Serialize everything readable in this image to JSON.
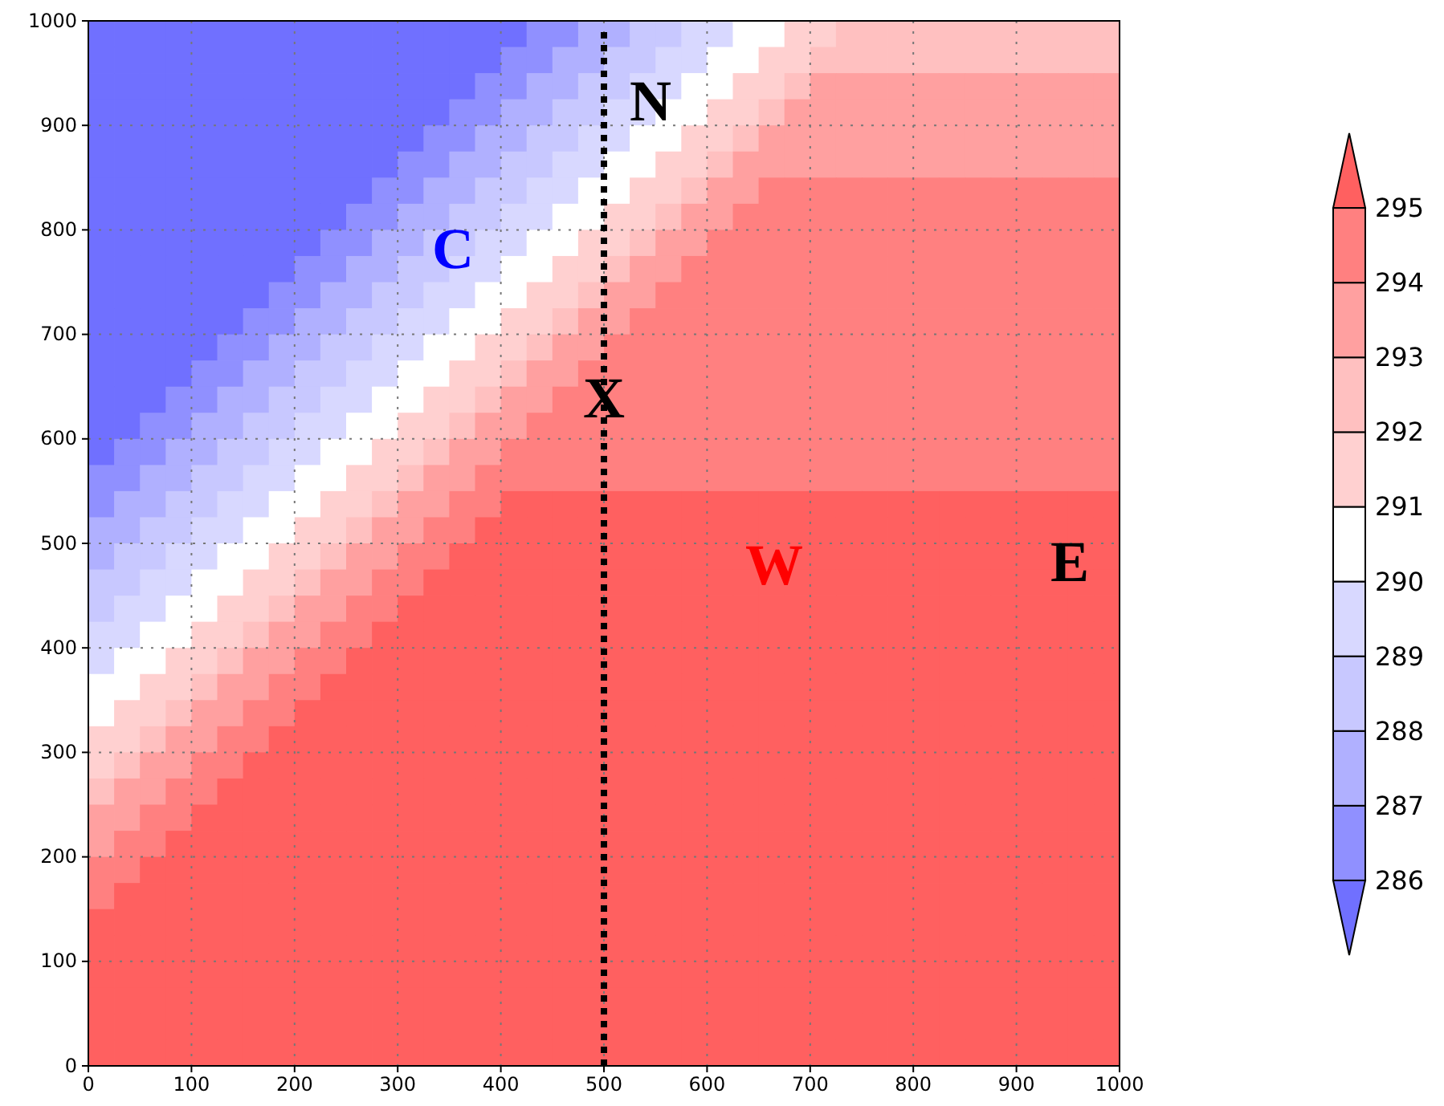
{
  "chart_data": {
    "type": "heatmap",
    "xlim": [
      0,
      1000
    ],
    "ylim": [
      0,
      1000
    ],
    "xticks": [
      0,
      100,
      200,
      300,
      400,
      500,
      600,
      700,
      800,
      900,
      1000
    ],
    "yticks": [
      0,
      100,
      200,
      300,
      400,
      500,
      600,
      700,
      800,
      900,
      1000
    ],
    "grid": true,
    "clim": [
      285,
      296
    ],
    "cticks": [
      286,
      287,
      288,
      289,
      290,
      291,
      292,
      293,
      294,
      295
    ],
    "colors": [
      "#7070ff",
      "#9090ff",
      "#b0b0ff",
      "#c8c8ff",
      "#d8d8ff",
      "#ffffff",
      "#ffd0d0",
      "#ffc0c0",
      "#ffa0a0",
      "#ff8080",
      "#ff6060"
    ],
    "ref_lines": [
      {
        "axis": "x",
        "value": 500,
        "color": "#000000",
        "line_style": "dotted"
      }
    ],
    "annotations": [
      "N",
      "C",
      {
        "text": "X",
        "x": 500,
        "y": 639
      },
      "W",
      "E"
    ],
    "cells": [
      [
        285.5,
        285.5,
        285.5,
        285.5,
        285.5,
        285.5,
        285.5,
        285.5,
        285.5,
        285.5,
        285.5,
        285.5,
        285.5,
        285.5,
        285.5,
        285.5,
        285.5,
        286.5,
        286.5,
        287.5,
        287.5,
        288.5,
        288.5,
        289.5,
        289.5,
        290.5,
        290.5,
        291.5,
        291.5,
        292.5,
        292.5,
        292.5,
        292.5,
        292.5,
        292.5,
        292.5,
        292.5,
        292.5,
        292.5,
        292.5
      ],
      [
        285.5,
        285.5,
        285.5,
        285.5,
        285.5,
        285.5,
        285.5,
        285.5,
        285.5,
        285.5,
        285.5,
        285.5,
        285.5,
        285.5,
        285.5,
        285.5,
        286.5,
        286.5,
        287.5,
        287.5,
        288.5,
        288.5,
        289.5,
        289.5,
        290.5,
        290.5,
        291.5,
        291.5,
        292.5,
        292.5,
        292.5,
        292.5,
        292.5,
        292.5,
        292.5,
        292.5,
        292.5,
        292.5,
        292.5,
        292.5
      ],
      [
        285.5,
        285.5,
        285.5,
        285.5,
        285.5,
        285.5,
        285.5,
        285.5,
        285.5,
        285.5,
        285.5,
        285.5,
        285.5,
        285.5,
        285.5,
        286.5,
        286.5,
        287.5,
        287.5,
        288.5,
        288.5,
        289.5,
        289.5,
        290.5,
        290.5,
        291.5,
        291.5,
        292.5,
        293.5,
        293.5,
        293.5,
        293.5,
        293.5,
        293.5,
        293.5,
        293.5,
        293.5,
        293.5,
        293.5,
        293.5
      ],
      [
        285.5,
        285.5,
        285.5,
        285.5,
        285.5,
        285.5,
        285.5,
        285.5,
        285.5,
        285.5,
        285.5,
        285.5,
        285.5,
        285.5,
        286.5,
        286.5,
        287.5,
        287.5,
        288.5,
        288.5,
        289.5,
        289.5,
        290.5,
        290.5,
        291.5,
        291.5,
        292.5,
        293.5,
        293.5,
        293.5,
        293.5,
        293.5,
        293.5,
        293.5,
        293.5,
        293.5,
        293.5,
        293.5,
        293.5,
        293.5
      ],
      [
        285.5,
        285.5,
        285.5,
        285.5,
        285.5,
        285.5,
        285.5,
        285.5,
        285.5,
        285.5,
        285.5,
        285.5,
        285.5,
        286.5,
        286.5,
        287.5,
        287.5,
        288.5,
        288.5,
        289.5,
        289.5,
        290.5,
        290.5,
        291.5,
        291.5,
        292.5,
        293.5,
        293.5,
        293.5,
        293.5,
        293.5,
        293.5,
        293.5,
        293.5,
        293.5,
        293.5,
        293.5,
        293.5,
        293.5,
        293.5
      ],
      [
        285.5,
        285.5,
        285.5,
        285.5,
        285.5,
        285.5,
        285.5,
        285.5,
        285.5,
        285.5,
        285.5,
        285.5,
        286.5,
        286.5,
        287.5,
        287.5,
        288.5,
        288.5,
        289.5,
        289.5,
        290.5,
        290.5,
        291.5,
        291.5,
        292.5,
        293.5,
        293.5,
        293.5,
        293.5,
        293.5,
        293.5,
        293.5,
        293.5,
        293.5,
        293.5,
        293.5,
        293.5,
        293.5,
        293.5,
        293.5
      ],
      [
        285.5,
        285.5,
        285.5,
        285.5,
        285.5,
        285.5,
        285.5,
        285.5,
        285.5,
        285.5,
        285.5,
        286.5,
        286.5,
        287.5,
        287.5,
        288.5,
        288.5,
        289.5,
        289.5,
        290.5,
        290.5,
        291.5,
        291.5,
        292.5,
        293.5,
        293.5,
        294.5,
        294.5,
        294.5,
        294.5,
        294.5,
        294.5,
        294.5,
        294.5,
        294.5,
        294.5,
        294.5,
        294.5,
        294.5,
        294.5
      ],
      [
        285.5,
        285.5,
        285.5,
        285.5,
        285.5,
        285.5,
        285.5,
        285.5,
        285.5,
        285.5,
        286.5,
        286.5,
        287.5,
        287.5,
        288.5,
        288.5,
        289.5,
        289.5,
        290.5,
        290.5,
        291.5,
        291.5,
        292.5,
        293.5,
        293.5,
        294.5,
        294.5,
        294.5,
        294.5,
        294.5,
        294.5,
        294.5,
        294.5,
        294.5,
        294.5,
        294.5,
        294.5,
        294.5,
        294.5,
        294.5
      ],
      [
        285.5,
        285.5,
        285.5,
        285.5,
        285.5,
        285.5,
        285.5,
        285.5,
        285.5,
        286.5,
        286.5,
        287.5,
        287.5,
        288.5,
        288.5,
        289.5,
        289.5,
        290.5,
        290.5,
        291.5,
        291.5,
        292.5,
        293.5,
        293.5,
        294.5,
        294.5,
        294.5,
        294.5,
        294.5,
        294.5,
        294.5,
        294.5,
        294.5,
        294.5,
        294.5,
        294.5,
        294.5,
        294.5,
        294.5,
        294.5
      ],
      [
        285.5,
        285.5,
        285.5,
        285.5,
        285.5,
        285.5,
        285.5,
        285.5,
        286.5,
        286.5,
        287.5,
        287.5,
        288.5,
        288.5,
        289.5,
        289.5,
        290.5,
        290.5,
        291.5,
        291.5,
        292.5,
        293.5,
        293.5,
        294.5,
        294.5,
        294.5,
        294.5,
        294.5,
        294.5,
        294.5,
        294.5,
        294.5,
        294.5,
        294.5,
        294.5,
        294.5,
        294.5,
        294.5,
        294.5,
        294.5
      ],
      [
        285.5,
        285.5,
        285.5,
        285.5,
        285.5,
        285.5,
        285.5,
        286.5,
        286.5,
        287.5,
        287.5,
        288.5,
        288.5,
        289.5,
        289.5,
        290.5,
        290.5,
        291.5,
        291.5,
        292.5,
        293.5,
        293.5,
        294.5,
        294.5,
        294.5,
        294.5,
        294.5,
        294.5,
        294.5,
        294.5,
        294.5,
        294.5,
        294.5,
        294.5,
        294.5,
        294.5,
        294.5,
        294.5,
        294.5,
        294.5
      ],
      [
        285.5,
        285.5,
        285.5,
        285.5,
        285.5,
        285.5,
        286.5,
        286.5,
        287.5,
        287.5,
        288.5,
        288.5,
        289.5,
        289.5,
        290.5,
        290.5,
        291.5,
        291.5,
        292.5,
        293.5,
        293.5,
        294.5,
        294.5,
        294.5,
        294.5,
        294.5,
        294.5,
        294.5,
        294.5,
        294.5,
        294.5,
        294.5,
        294.5,
        294.5,
        294.5,
        294.5,
        294.5,
        294.5,
        294.5,
        294.5
      ],
      [
        285.5,
        285.5,
        285.5,
        285.5,
        285.5,
        286.5,
        286.5,
        287.5,
        287.5,
        288.5,
        288.5,
        289.5,
        289.5,
        290.5,
        290.5,
        291.5,
        291.5,
        292.5,
        293.5,
        293.5,
        294.5,
        294.5,
        294.5,
        294.5,
        294.5,
        294.5,
        294.5,
        294.5,
        294.5,
        294.5,
        294.5,
        294.5,
        294.5,
        294.5,
        294.5,
        294.5,
        294.5,
        294.5,
        294.5,
        294.5
      ],
      [
        285.5,
        285.5,
        285.5,
        285.5,
        286.5,
        286.5,
        287.5,
        287.5,
        288.5,
        288.5,
        289.5,
        289.5,
        290.5,
        290.5,
        291.5,
        291.5,
        292.5,
        293.5,
        293.5,
        294.5,
        294.5,
        294.5,
        294.5,
        294.5,
        294.5,
        294.5,
        294.5,
        294.5,
        294.5,
        294.5,
        294.5,
        294.5,
        294.5,
        294.5,
        294.5,
        294.5,
        294.5,
        294.5,
        294.5,
        294.5
      ],
      [
        285.5,
        285.5,
        285.5,
        286.5,
        286.5,
        287.5,
        287.5,
        288.5,
        288.5,
        289.5,
        289.5,
        290.5,
        290.5,
        291.5,
        291.5,
        292.5,
        293.5,
        293.5,
        294.5,
        294.5,
        294.5,
        294.5,
        294.5,
        294.5,
        294.5,
        294.5,
        294.5,
        294.5,
        294.5,
        294.5,
        294.5,
        294.5,
        294.5,
        294.5,
        294.5,
        294.5,
        294.5,
        294.5,
        294.5,
        294.5
      ],
      [
        285.5,
        285.5,
        286.5,
        286.5,
        287.5,
        287.5,
        288.5,
        288.5,
        289.5,
        289.5,
        290.5,
        290.5,
        291.5,
        291.5,
        292.5,
        293.5,
        293.5,
        294.5,
        294.5,
        294.5,
        294.5,
        294.5,
        294.5,
        294.5,
        294.5,
        294.5,
        294.5,
        294.5,
        294.5,
        294.5,
        294.5,
        294.5,
        294.5,
        294.5,
        294.5,
        294.5,
        294.5,
        294.5,
        294.5,
        294.5
      ],
      [
        285.5,
        286.5,
        286.5,
        287.5,
        287.5,
        288.5,
        288.5,
        289.5,
        289.5,
        290.5,
        290.5,
        291.5,
        291.5,
        292.5,
        293.5,
        293.5,
        294.5,
        294.5,
        294.5,
        294.5,
        294.5,
        294.5,
        294.5,
        294.5,
        294.5,
        294.5,
        294.5,
        294.5,
        294.5,
        294.5,
        294.5,
        294.5,
        294.5,
        294.5,
        294.5,
        294.5,
        294.5,
        294.5,
        294.5,
        294.5
      ],
      [
        286.5,
        286.5,
        287.5,
        287.5,
        288.5,
        288.5,
        289.5,
        289.5,
        290.5,
        290.5,
        291.5,
        291.5,
        292.5,
        293.5,
        293.5,
        294.5,
        294.5,
        294.5,
        294.5,
        294.5,
        294.5,
        294.5,
        294.5,
        294.5,
        294.5,
        294.5,
        294.5,
        294.5,
        294.5,
        294.5,
        294.5,
        294.5,
        294.5,
        294.5,
        294.5,
        294.5,
        294.5,
        294.5,
        294.5,
        294.5
      ],
      [
        286.5,
        287.5,
        287.5,
        288.5,
        288.5,
        289.5,
        289.5,
        290.5,
        290.5,
        291.5,
        291.5,
        292.5,
        293.5,
        293.5,
        294.5,
        294.5,
        295.5,
        295.5,
        295.5,
        295.5,
        295.5,
        295.5,
        295.5,
        295.5,
        295.5,
        295.5,
        295.5,
        295.5,
        295.5,
        295.5,
        295.5,
        295.5,
        295.5,
        295.5,
        295.5,
        295.5,
        295.5,
        295.5,
        295.5,
        295.5
      ],
      [
        287.5,
        287.5,
        288.5,
        288.5,
        289.5,
        289.5,
        290.5,
        290.5,
        291.5,
        291.5,
        292.5,
        293.5,
        293.5,
        294.5,
        294.5,
        295.5,
        295.5,
        295.5,
        295.5,
        295.5,
        295.5,
        295.5,
        295.5,
        295.5,
        295.5,
        295.5,
        295.5,
        295.5,
        295.5,
        295.5,
        295.5,
        295.5,
        295.5,
        295.5,
        295.5,
        295.5,
        295.5,
        295.5,
        295.5,
        295.5
      ],
      [
        287.5,
        288.5,
        288.5,
        289.5,
        289.5,
        290.5,
        290.5,
        291.5,
        291.5,
        292.5,
        293.5,
        293.5,
        294.5,
        294.5,
        295.5,
        295.5,
        295.5,
        295.5,
        295.5,
        295.5,
        295.5,
        295.5,
        295.5,
        295.5,
        295.5,
        295.5,
        295.5,
        295.5,
        295.5,
        295.5,
        295.5,
        295.5,
        295.5,
        295.5,
        295.5,
        295.5,
        295.5,
        295.5,
        295.5,
        295.5
      ],
      [
        288.5,
        288.5,
        289.5,
        289.5,
        290.5,
        290.5,
        291.5,
        291.5,
        292.5,
        293.5,
        293.5,
        294.5,
        294.5,
        295.5,
        295.5,
        295.5,
        295.5,
        295.5,
        295.5,
        295.5,
        295.5,
        295.5,
        295.5,
        295.5,
        295.5,
        295.5,
        295.5,
        295.5,
        295.5,
        295.5,
        295.5,
        295.5,
        295.5,
        295.5,
        295.5,
        295.5,
        295.5,
        295.5,
        295.5,
        295.5
      ],
      [
        288.5,
        289.5,
        289.5,
        290.5,
        290.5,
        291.5,
        291.5,
        292.5,
        293.5,
        293.5,
        294.5,
        294.5,
        295.5,
        295.5,
        295.5,
        295.5,
        295.5,
        295.5,
        295.5,
        295.5,
        295.5,
        295.5,
        295.5,
        295.5,
        295.5,
        295.5,
        295.5,
        295.5,
        295.5,
        295.5,
        295.5,
        295.5,
        295.5,
        295.5,
        295.5,
        295.5,
        295.5,
        295.5,
        295.5,
        295.5
      ],
      [
        289.5,
        289.5,
        290.5,
        290.5,
        291.5,
        291.5,
        292.5,
        293.5,
        293.5,
        294.5,
        294.5,
        295.5,
        295.5,
        295.5,
        295.5,
        295.5,
        295.5,
        295.5,
        295.5,
        295.5,
        295.5,
        295.5,
        295.5,
        295.5,
        295.5,
        295.5,
        295.5,
        295.5,
        295.5,
        295.5,
        295.5,
        295.5,
        295.5,
        295.5,
        295.5,
        295.5,
        295.5,
        295.5,
        295.5,
        295.5
      ],
      [
        289.5,
        290.5,
        290.5,
        291.5,
        291.5,
        292.5,
        293.5,
        293.5,
        294.5,
        294.5,
        295.5,
        295.5,
        295.5,
        295.5,
        295.5,
        295.5,
        295.5,
        295.5,
        295.5,
        295.5,
        295.5,
        295.5,
        295.5,
        295.5,
        295.5,
        295.5,
        295.5,
        295.5,
        295.5,
        295.5,
        295.5,
        295.5,
        295.5,
        295.5,
        295.5,
        295.5,
        295.5,
        295.5,
        295.5,
        295.5
      ],
      [
        290.5,
        290.5,
        291.5,
        291.5,
        292.5,
        293.5,
        293.5,
        294.5,
        294.5,
        295.5,
        295.5,
        295.5,
        295.5,
        295.5,
        295.5,
        295.5,
        295.5,
        295.5,
        295.5,
        295.5,
        295.5,
        295.5,
        295.5,
        295.5,
        295.5,
        295.5,
        295.5,
        295.5,
        295.5,
        295.5,
        295.5,
        295.5,
        295.5,
        295.5,
        295.5,
        295.5,
        295.5,
        295.5,
        295.5,
        295.5
      ],
      [
        290.5,
        291.5,
        291.5,
        292.5,
        293.5,
        293.5,
        294.5,
        294.5,
        295.5,
        295.5,
        295.5,
        295.5,
        295.5,
        295.5,
        295.5,
        295.5,
        295.5,
        295.5,
        295.5,
        295.5,
        295.5,
        295.5,
        295.5,
        295.5,
        295.5,
        295.5,
        295.5,
        295.5,
        295.5,
        295.5,
        295.5,
        295.5,
        295.5,
        295.5,
        295.5,
        295.5,
        295.5,
        295.5,
        295.5,
        295.5
      ],
      [
        291.5,
        291.5,
        292.5,
        293.5,
        293.5,
        294.5,
        294.5,
        295.5,
        295.5,
        295.5,
        295.5,
        295.5,
        295.5,
        295.5,
        295.5,
        295.5,
        295.5,
        295.5,
        295.5,
        295.5,
        295.5,
        295.5,
        295.5,
        295.5,
        295.5,
        295.5,
        295.5,
        295.5,
        295.5,
        295.5,
        295.5,
        295.5,
        295.5,
        295.5,
        295.5,
        295.5,
        295.5,
        295.5,
        295.5,
        295.5
      ],
      [
        291.5,
        292.5,
        293.5,
        293.5,
        294.5,
        294.5,
        295.5,
        295.5,
        295.5,
        295.5,
        295.5,
        295.5,
        295.5,
        295.5,
        295.5,
        295.5,
        295.5,
        295.5,
        295.5,
        295.5,
        295.5,
        295.5,
        295.5,
        295.5,
        295.5,
        295.5,
        295.5,
        295.5,
        295.5,
        295.5,
        295.5,
        295.5,
        295.5,
        295.5,
        295.5,
        295.5,
        295.5,
        295.5,
        295.5,
        295.5
      ],
      [
        292.5,
        293.5,
        293.5,
        294.5,
        294.5,
        295.5,
        295.5,
        295.5,
        295.5,
        295.5,
        295.5,
        295.5,
        295.5,
        295.5,
        295.5,
        295.5,
        295.5,
        295.5,
        295.5,
        295.5,
        295.5,
        295.5,
        295.5,
        295.5,
        295.5,
        295.5,
        295.5,
        295.5,
        295.5,
        295.5,
        295.5,
        295.5,
        295.5,
        295.5,
        295.5,
        295.5,
        295.5,
        295.5,
        295.5,
        295.5
      ],
      [
        293.5,
        293.5,
        294.5,
        294.5,
        295.5,
        295.5,
        295.5,
        295.5,
        295.5,
        295.5,
        295.5,
        295.5,
        295.5,
        295.5,
        295.5,
        295.5,
        295.5,
        295.5,
        295.5,
        295.5,
        295.5,
        295.5,
        295.5,
        295.5,
        295.5,
        295.5,
        295.5,
        295.5,
        295.5,
        295.5,
        295.5,
        295.5,
        295.5,
        295.5,
        295.5,
        295.5,
        295.5,
        295.5,
        295.5,
        295.5
      ],
      [
        293.5,
        294.5,
        294.5,
        295.5,
        295.5,
        295.5,
        295.5,
        295.5,
        295.5,
        295.5,
        295.5,
        295.5,
        295.5,
        295.5,
        295.5,
        295.5,
        295.5,
        295.5,
        295.5,
        295.5,
        295.5,
        295.5,
        295.5,
        295.5,
        295.5,
        295.5,
        295.5,
        295.5,
        295.5,
        295.5,
        295.5,
        295.5,
        295.5,
        295.5,
        295.5,
        295.5,
        295.5,
        295.5,
        295.5,
        295.5
      ],
      [
        294.5,
        294.5,
        295.5,
        295.5,
        295.5,
        295.5,
        295.5,
        295.5,
        295.5,
        295.5,
        295.5,
        295.5,
        295.5,
        295.5,
        295.5,
        295.5,
        295.5,
        295.5,
        295.5,
        295.5,
        295.5,
        295.5,
        295.5,
        295.5,
        295.5,
        295.5,
        295.5,
        295.5,
        295.5,
        295.5,
        295.5,
        295.5,
        295.5,
        295.5,
        295.5,
        295.5,
        295.5,
        295.5,
        295.5,
        295.5
      ],
      [
        294.5,
        295.5,
        295.5,
        295.5,
        295.5,
        295.5,
        295.5,
        295.5,
        295.5,
        295.5,
        295.5,
        295.5,
        295.5,
        295.5,
        295.5,
        295.5,
        295.5,
        295.5,
        295.5,
        295.5,
        295.5,
        295.5,
        295.5,
        295.5,
        295.5,
        295.5,
        295.5,
        295.5,
        295.5,
        295.5,
        295.5,
        295.5,
        295.5,
        295.5,
        295.5,
        295.5,
        295.5,
        295.5,
        295.5,
        295.5
      ],
      [
        295.5,
        295.5,
        295.5,
        295.5,
        295.5,
        295.5,
        295.5,
        295.5,
        295.5,
        295.5,
        295.5,
        295.5,
        295.5,
        295.5,
        295.5,
        295.5,
        295.5,
        295.5,
        295.5,
        295.5,
        295.5,
        295.5,
        295.5,
        295.5,
        295.5,
        295.5,
        295.5,
        295.5,
        295.5,
        295.5,
        295.5,
        295.5,
        295.5,
        295.5,
        295.5,
        295.5,
        295.5,
        295.5,
        295.5,
        295.5
      ],
      [
        295.5,
        295.5,
        295.5,
        295.5,
        295.5,
        295.5,
        295.5,
        295.5,
        295.5,
        295.5,
        295.5,
        295.5,
        295.5,
        295.5,
        295.5,
        295.5,
        295.5,
        295.5,
        295.5,
        295.5,
        295.5,
        295.5,
        295.5,
        295.5,
        295.5,
        295.5,
        295.5,
        295.5,
        295.5,
        295.5,
        295.5,
        295.5,
        295.5,
        295.5,
        295.5,
        295.5,
        295.5,
        295.5,
        295.5,
        295.5
      ],
      [
        295.5,
        295.5,
        295.5,
        295.5,
        295.5,
        295.5,
        295.5,
        295.5,
        295.5,
        295.5,
        295.5,
        295.5,
        295.5,
        295.5,
        295.5,
        295.5,
        295.5,
        295.5,
        295.5,
        295.5,
        295.5,
        295.5,
        295.5,
        295.5,
        295.5,
        295.5,
        295.5,
        295.5,
        295.5,
        295.5,
        295.5,
        295.5,
        295.5,
        295.5,
        295.5,
        295.5,
        295.5,
        295.5,
        295.5,
        295.5
      ],
      [
        295.5,
        295.5,
        295.5,
        295.5,
        295.5,
        295.5,
        295.5,
        295.5,
        295.5,
        295.5,
        295.5,
        295.5,
        295.5,
        295.5,
        295.5,
        295.5,
        295.5,
        295.5,
        295.5,
        295.5,
        295.5,
        295.5,
        295.5,
        295.5,
        295.5,
        295.5,
        295.5,
        295.5,
        295.5,
        295.5,
        295.5,
        295.5,
        295.5,
        295.5,
        295.5,
        295.5,
        295.5,
        295.5,
        295.5,
        295.5
      ],
      [
        295.5,
        295.5,
        295.5,
        295.5,
        295.5,
        295.5,
        295.5,
        295.5,
        295.5,
        295.5,
        295.5,
        295.5,
        295.5,
        295.5,
        295.5,
        295.5,
        295.5,
        295.5,
        295.5,
        295.5,
        295.5,
        295.5,
        295.5,
        295.5,
        295.5,
        295.5,
        295.5,
        295.5,
        295.5,
        295.5,
        295.5,
        295.5,
        295.5,
        295.5,
        295.5,
        295.5,
        295.5,
        295.5,
        295.5,
        295.5
      ],
      [
        295.5,
        295.5,
        295.5,
        295.5,
        295.5,
        295.5,
        295.5,
        295.5,
        295.5,
        295.5,
        295.5,
        295.5,
        295.5,
        295.5,
        295.5,
        295.5,
        295.5,
        295.5,
        295.5,
        295.5,
        295.5,
        295.5,
        295.5,
        295.5,
        295.5,
        295.5,
        295.5,
        295.5,
        295.5,
        295.5,
        295.5,
        295.5,
        295.5,
        295.5,
        295.5,
        295.5,
        295.5,
        295.5,
        295.5,
        295.5
      ]
    ]
  }
}
